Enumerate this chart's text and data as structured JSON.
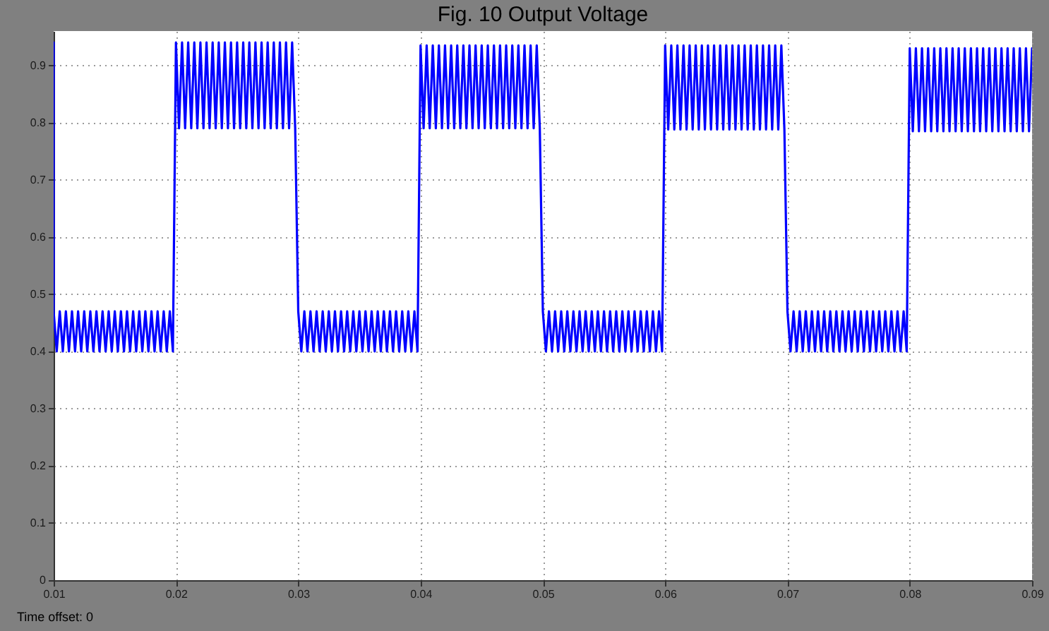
{
  "chart_data": {
    "type": "line",
    "title": "Fig. 10 Output Voltage",
    "annotations": [
      "Time offset: 0"
    ],
    "x": [
      0.01,
      0.01,
      0.01025,
      0.0105,
      0.01075,
      0.011,
      0.01125,
      0.0115,
      0.01175,
      0.012,
      0.01225,
      0.0125,
      0.01275,
      0.013,
      0.01325,
      0.0135,
      0.01375,
      0.014,
      0.01425,
      0.0145,
      0.01475,
      0.015,
      0.01525,
      0.0155,
      0.01575,
      0.016,
      0.01625,
      0.0165,
      0.01675,
      0.017,
      0.01725,
      0.0175,
      0.01775,
      0.018,
      0.01825,
      0.0185,
      0.01875,
      0.019,
      0.01925,
      0.0195,
      0.01975,
      0.02,
      0.02025,
      0.0205,
      0.02075,
      0.021,
      0.02125,
      0.0215,
      0.02175,
      0.022,
      0.02225,
      0.0225,
      0.02275,
      0.023,
      0.02325,
      0.0235,
      0.02375,
      0.024,
      0.02425,
      0.0245,
      0.02475,
      0.025,
      0.02525,
      0.0255,
      0.02575,
      0.026,
      0.02625,
      0.0265,
      0.02675,
      0.027,
      0.02725,
      0.0275,
      0.02775,
      0.028,
      0.02825,
      0.0285,
      0.02875,
      0.029,
      0.02925,
      0.0295,
      0.02975,
      0.03,
      0.03025,
      0.0305,
      0.03075,
      0.031,
      0.03125,
      0.0315,
      0.03175,
      0.032,
      0.03225,
      0.0325,
      0.03275,
      0.033,
      0.03325,
      0.0335,
      0.03375,
      0.034,
      0.03425,
      0.0345,
      0.03475,
      0.035,
      0.03525,
      0.0355,
      0.03575,
      0.036,
      0.03625,
      0.0365,
      0.03675,
      0.037,
      0.03725,
      0.0375,
      0.03775,
      0.038,
      0.03825,
      0.0385,
      0.03875,
      0.039,
      0.03925,
      0.0395,
      0.03975,
      0.04,
      0.04025,
      0.0405,
      0.04075,
      0.041,
      0.04125,
      0.0415,
      0.04175,
      0.042,
      0.04225,
      0.0425,
      0.04275,
      0.043,
      0.04325,
      0.0435,
      0.04375,
      0.044,
      0.04425,
      0.0445,
      0.04475,
      0.045,
      0.04525,
      0.0455,
      0.04575,
      0.046,
      0.04625,
      0.0465,
      0.04675,
      0.047,
      0.04725,
      0.0475,
      0.04775,
      0.048,
      0.04825,
      0.0485,
      0.04875,
      0.049,
      0.04925,
      0.0495,
      0.04975,
      0.05,
      0.05025,
      0.0505,
      0.05075,
      0.051,
      0.05125,
      0.0515,
      0.05175,
      0.052,
      0.05225,
      0.0525,
      0.05275,
      0.053,
      0.05325,
      0.0535,
      0.05375,
      0.054,
      0.05425,
      0.0545,
      0.05475,
      0.055,
      0.05525,
      0.0555,
      0.05575,
      0.056,
      0.05625,
      0.0565,
      0.05675,
      0.057,
      0.05725,
      0.0575,
      0.05775,
      0.058,
      0.05825,
      0.0585,
      0.05875,
      0.059,
      0.05925,
      0.0595,
      0.05975,
      0.06,
      0.06025,
      0.0605,
      0.06075,
      0.061,
      0.06125,
      0.0615,
      0.06175,
      0.062,
      0.06225,
      0.0625,
      0.06275,
      0.063,
      0.06325,
      0.0635,
      0.06375,
      0.064,
      0.06425,
      0.0645,
      0.06475,
      0.065,
      0.06525,
      0.0655,
      0.06575,
      0.066,
      0.06625,
      0.0665,
      0.06675,
      0.067,
      0.06725,
      0.0675,
      0.06775,
      0.068,
      0.06825,
      0.0685,
      0.06875,
      0.069,
      0.06925,
      0.0695,
      0.06975,
      0.07,
      0.07025,
      0.0705,
      0.07075,
      0.071,
      0.07125,
      0.0715,
      0.07175,
      0.072,
      0.07225,
      0.0725,
      0.07275,
      0.073,
      0.07325,
      0.0735,
      0.07375,
      0.074,
      0.07425,
      0.0745,
      0.07475,
      0.075,
      0.07525,
      0.0755,
      0.07575,
      0.076,
      0.07625,
      0.0765,
      0.07675,
      0.077,
      0.07725,
      0.0775,
      0.07775,
      0.078,
      0.07825,
      0.0785,
      0.07875,
      0.079,
      0.07925,
      0.0795,
      0.07975,
      0.08,
      0.08025,
      0.0805,
      0.08075,
      0.081,
      0.08125,
      0.0815,
      0.08175,
      0.082,
      0.08225,
      0.0825,
      0.08275,
      0.083,
      0.08325,
      0.0835,
      0.08375,
      0.084,
      0.08425,
      0.0845,
      0.08475,
      0.085,
      0.08525,
      0.0855,
      0.08575,
      0.086,
      0.08625,
      0.0865,
      0.08675,
      0.087,
      0.08725,
      0.0875,
      0.08775,
      0.088,
      0.08825,
      0.0885,
      0.08875,
      0.089,
      0.08925,
      0.0895,
      0.08975,
      0.09
    ],
    "series": [
      {
        "color": "#0000ff",
        "values": [
          0.94,
          0.47,
          0.4,
          0.47,
          0.4,
          0.47,
          0.4,
          0.47,
          0.4,
          0.47,
          0.4,
          0.47,
          0.4,
          0.47,
          0.4,
          0.47,
          0.4,
          0.47,
          0.4,
          0.47,
          0.4,
          0.47,
          0.4,
          0.47,
          0.4,
          0.47,
          0.4,
          0.47,
          0.4,
          0.47,
          0.4,
          0.47,
          0.4,
          0.47,
          0.4,
          0.47,
          0.4,
          0.47,
          0.4,
          0.47,
          0.4,
          0.94,
          0.79,
          0.94,
          0.79,
          0.94,
          0.79,
          0.94,
          0.79,
          0.94,
          0.79,
          0.94,
          0.79,
          0.94,
          0.79,
          0.94,
          0.79,
          0.94,
          0.79,
          0.94,
          0.79,
          0.94,
          0.79,
          0.94,
          0.79,
          0.94,
          0.79,
          0.94,
          0.79,
          0.94,
          0.79,
          0.94,
          0.79,
          0.94,
          0.79,
          0.94,
          0.79,
          0.94,
          0.79,
          0.94,
          0.79,
          0.47,
          0.4,
          0.47,
          0.4,
          0.47,
          0.4,
          0.47,
          0.4,
          0.47,
          0.4,
          0.47,
          0.4,
          0.47,
          0.4,
          0.47,
          0.4,
          0.47,
          0.4,
          0.47,
          0.4,
          0.47,
          0.4,
          0.47,
          0.4,
          0.47,
          0.4,
          0.47,
          0.4,
          0.47,
          0.4,
          0.47,
          0.4,
          0.47,
          0.4,
          0.47,
          0.4,
          0.47,
          0.4,
          0.47,
          0.4,
          0.935,
          0.79,
          0.935,
          0.79,
          0.935,
          0.79,
          0.935,
          0.79,
          0.935,
          0.79,
          0.935,
          0.79,
          0.935,
          0.79,
          0.935,
          0.79,
          0.935,
          0.79,
          0.935,
          0.79,
          0.935,
          0.79,
          0.935,
          0.79,
          0.935,
          0.79,
          0.935,
          0.79,
          0.935,
          0.79,
          0.935,
          0.79,
          0.935,
          0.79,
          0.935,
          0.79,
          0.935,
          0.79,
          0.935,
          0.79,
          0.47,
          0.4,
          0.47,
          0.4,
          0.47,
          0.4,
          0.47,
          0.4,
          0.47,
          0.4,
          0.47,
          0.4,
          0.47,
          0.4,
          0.47,
          0.4,
          0.47,
          0.4,
          0.47,
          0.4,
          0.47,
          0.4,
          0.47,
          0.4,
          0.47,
          0.4,
          0.47,
          0.4,
          0.47,
          0.4,
          0.47,
          0.4,
          0.47,
          0.4,
          0.47,
          0.4,
          0.47,
          0.4,
          0.47,
          0.4,
          0.935,
          0.788,
          0.935,
          0.788,
          0.935,
          0.788,
          0.935,
          0.788,
          0.935,
          0.788,
          0.935,
          0.788,
          0.935,
          0.788,
          0.935,
          0.788,
          0.935,
          0.788,
          0.935,
          0.788,
          0.935,
          0.788,
          0.935,
          0.788,
          0.935,
          0.788,
          0.935,
          0.788,
          0.935,
          0.788,
          0.935,
          0.788,
          0.935,
          0.788,
          0.935,
          0.788,
          0.935,
          0.788,
          0.935,
          0.788,
          0.47,
          0.4,
          0.47,
          0.4,
          0.47,
          0.4,
          0.47,
          0.4,
          0.47,
          0.4,
          0.47,
          0.4,
          0.47,
          0.4,
          0.47,
          0.4,
          0.47,
          0.4,
          0.47,
          0.4,
          0.47,
          0.4,
          0.47,
          0.4,
          0.47,
          0.4,
          0.47,
          0.4,
          0.47,
          0.4,
          0.47,
          0.4,
          0.47,
          0.4,
          0.47,
          0.4,
          0.47,
          0.4,
          0.47,
          0.4,
          0.93,
          0.785,
          0.93,
          0.785,
          0.93,
          0.785,
          0.93,
          0.785,
          0.93,
          0.785,
          0.93,
          0.785,
          0.93,
          0.785,
          0.93,
          0.785,
          0.93,
          0.785,
          0.93,
          0.785,
          0.93,
          0.785,
          0.93,
          0.785,
          0.93,
          0.785,
          0.93,
          0.785,
          0.93,
          0.785,
          0.93,
          0.785,
          0.93,
          0.785,
          0.93,
          0.785,
          0.93,
          0.785,
          0.93,
          0.785,
          0.93
        ]
      }
    ],
    "xlim": [
      0.01,
      0.09
    ],
    "ylim": [
      0,
      0.96
    ],
    "xticks": [
      0.01,
      0.02,
      0.03,
      0.04,
      0.05,
      0.06,
      0.07,
      0.08,
      0.09
    ],
    "yticks": [
      0,
      0.1,
      0.2,
      0.3,
      0.4,
      0.5,
      0.6,
      0.7,
      0.8,
      0.9
    ],
    "grid": true
  }
}
